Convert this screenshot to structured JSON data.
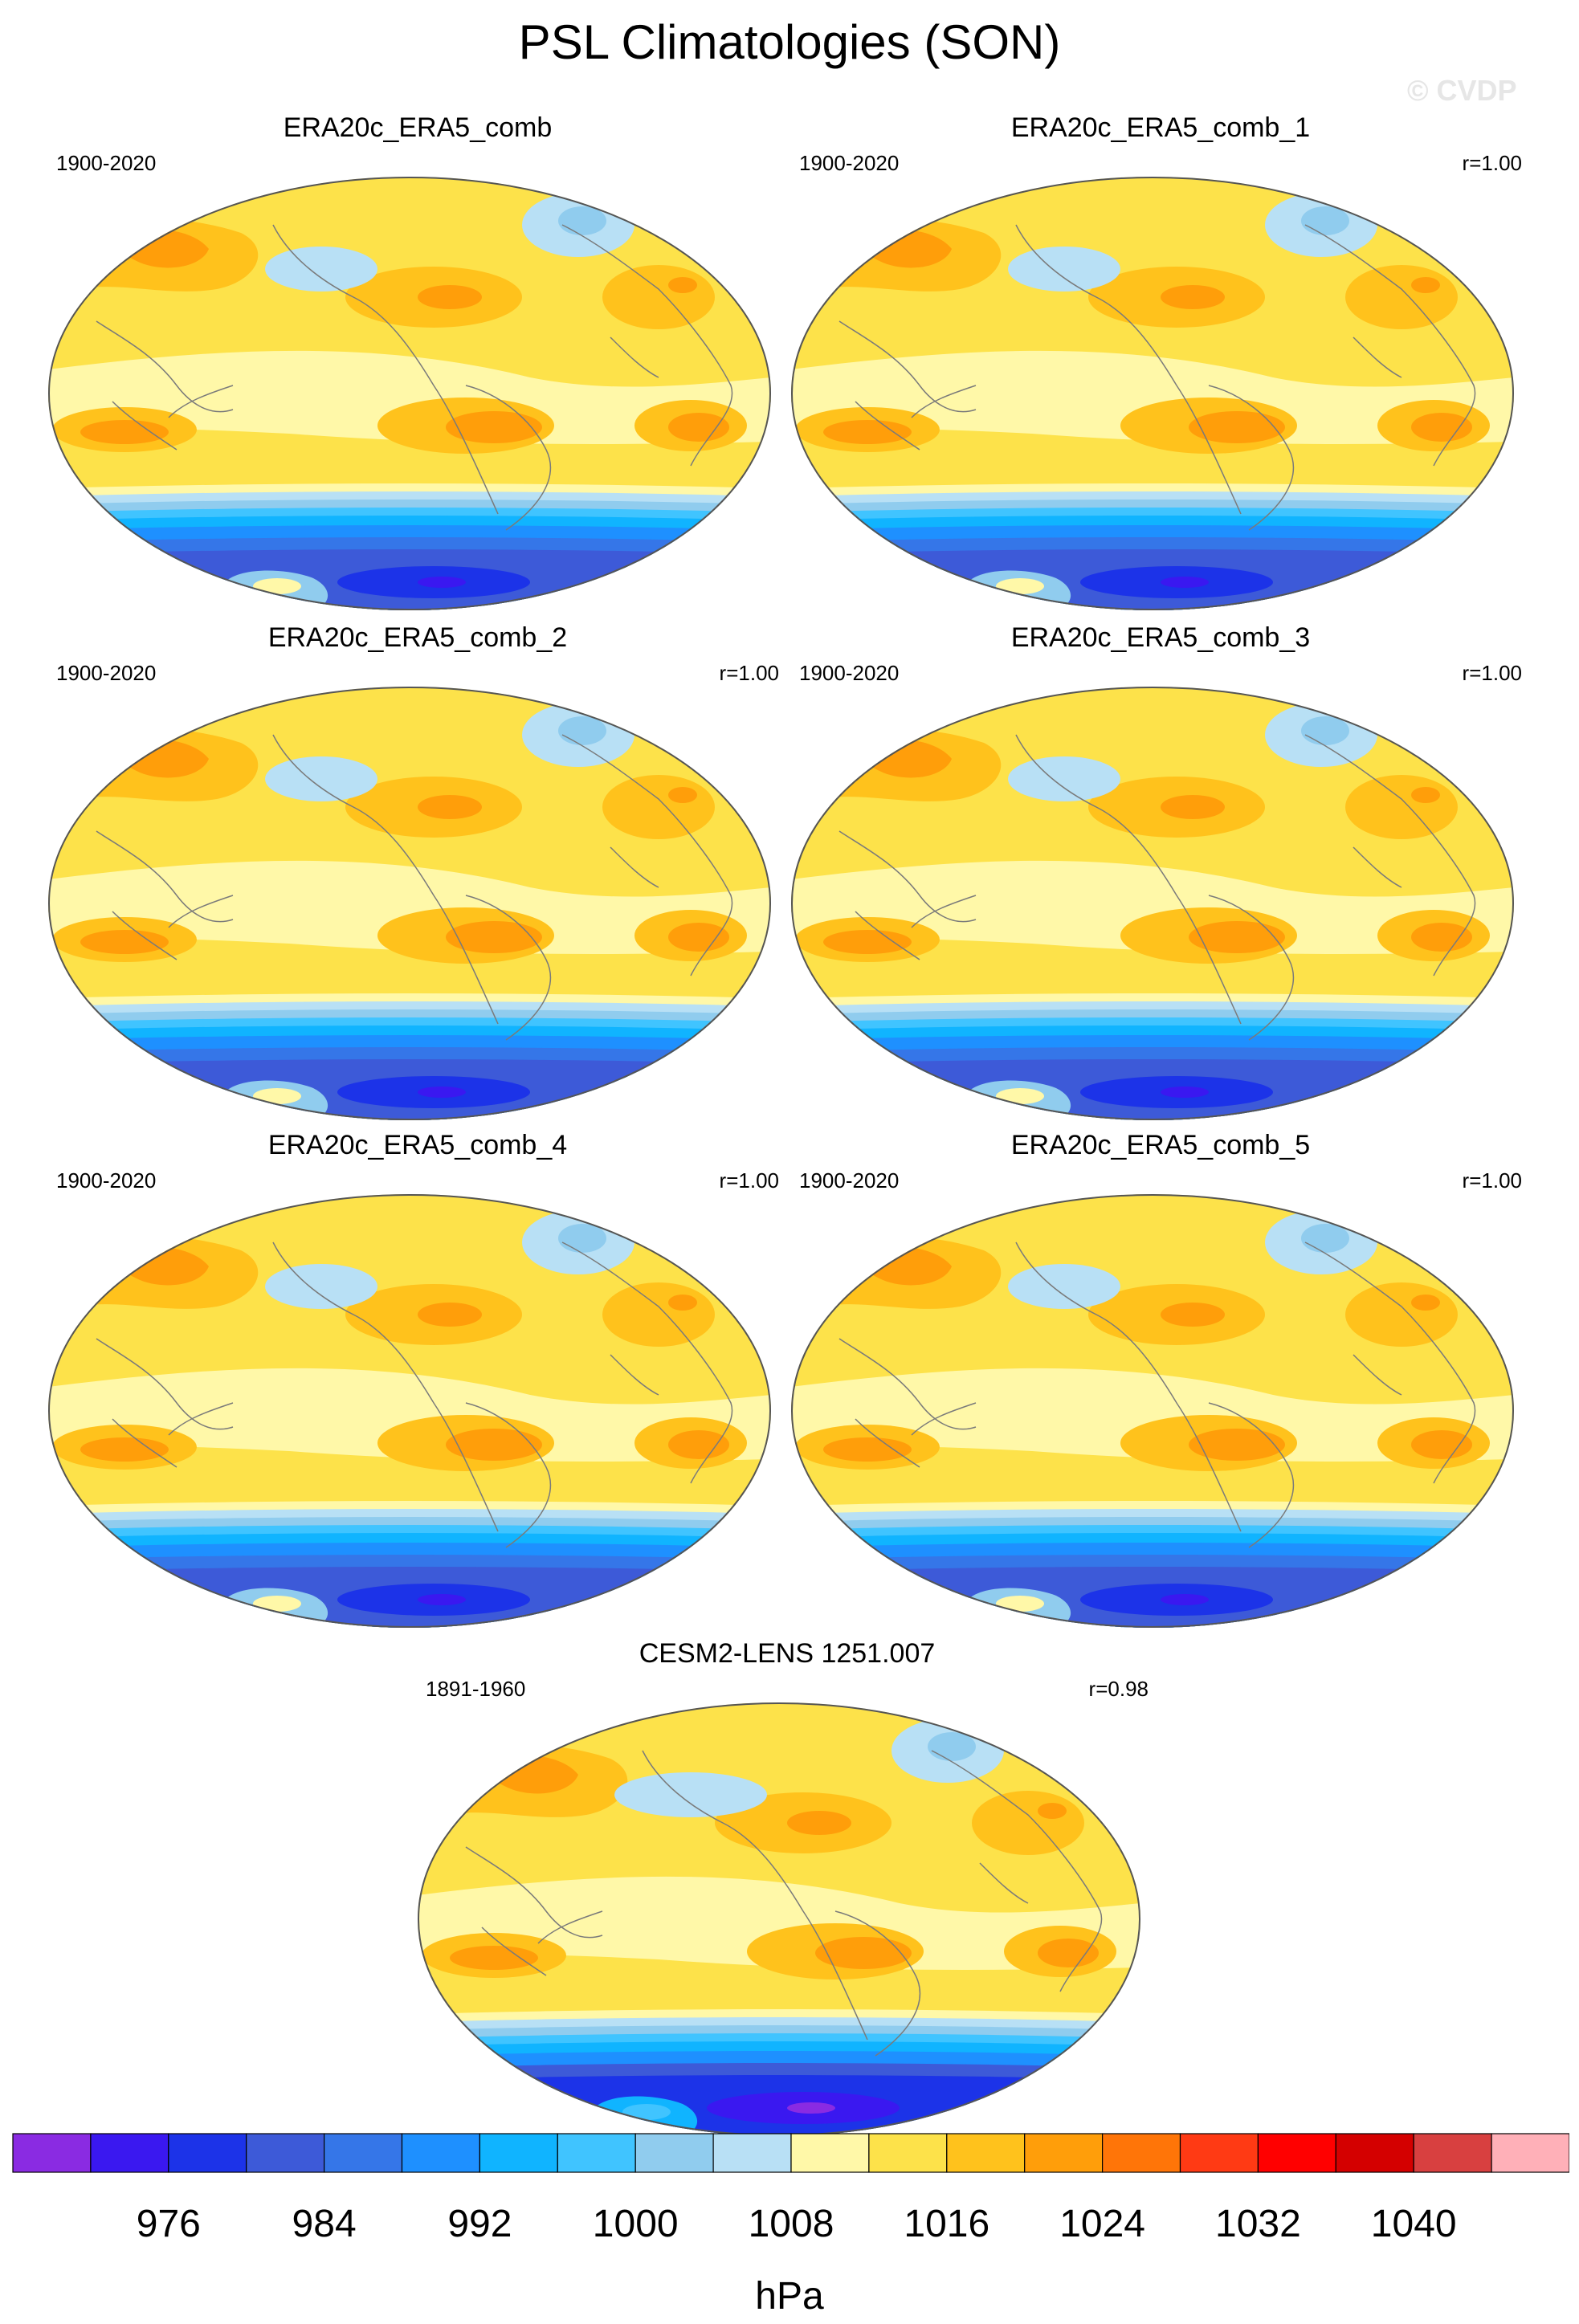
{
  "title": "PSL Climatologies (SON)",
  "watermark": "© CVDP",
  "panels": [
    {
      "name": "ERA20c_ERA5_comb",
      "period": "1900-2020",
      "r": "",
      "model": false
    },
    {
      "name": "ERA20c_ERA5_comb_1",
      "period": "1900-2020",
      "r": "r=1.00",
      "model": false
    },
    {
      "name": "ERA20c_ERA5_comb_2",
      "period": "1900-2020",
      "r": "r=1.00",
      "model": false
    },
    {
      "name": "ERA20c_ERA5_comb_3",
      "period": "1900-2020",
      "r": "r=1.00",
      "model": false
    },
    {
      "name": "ERA20c_ERA5_comb_4",
      "period": "1900-2020",
      "r": "r=1.00",
      "model": false
    },
    {
      "name": "ERA20c_ERA5_comb_5",
      "period": "1900-2020",
      "r": "r=1.00",
      "model": false
    },
    {
      "name": "CESM2-LENS 1251.007",
      "period": "1891-1960",
      "r": "r=0.98",
      "model": true
    }
  ],
  "chart_data": {
    "type": "heatmap",
    "units": "hPa",
    "colorbar_labels": [
      "976",
      "984",
      "992",
      "1000",
      "1008",
      "1016",
      "1024",
      "1032",
      "1040"
    ],
    "colors": [
      "#8a2be2",
      "#3a18f0",
      "#1c33e8",
      "#3d5ad8",
      "#3576e8",
      "#1e90ff",
      "#10b4ff",
      "#40c4ff",
      "#90ccee",
      "#b8e0f5",
      "#fff8a8",
      "#fde24a",
      "#ffc21c",
      "#ff9e0a",
      "#ff7508",
      "#ff3a14",
      "#ff0000",
      "#d40000",
      "#d84040",
      "#ffb0b8"
    ],
    "colors_note": "low to high pressure; labels at every other box boundary"
  }
}
